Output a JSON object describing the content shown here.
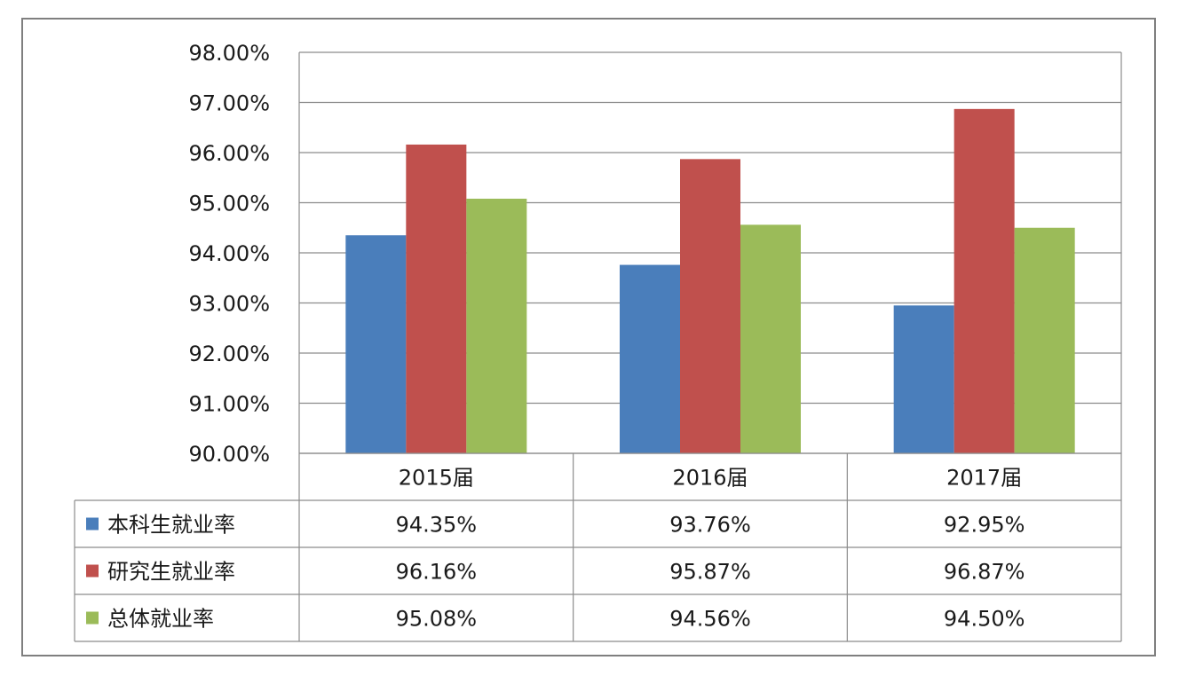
{
  "chart_data": {
    "type": "bar",
    "categories": [
      "2015届",
      "2016届",
      "2017届"
    ],
    "series": [
      {
        "name": "本科生就业率",
        "values": [
          94.35,
          93.76,
          92.95
        ],
        "labels": [
          "94.35%",
          "93.76%",
          "92.95%"
        ],
        "color": "#4a7ebb"
      },
      {
        "name": "研究生就业率",
        "values": [
          96.16,
          95.87,
          96.87
        ],
        "labels": [
          "96.16%",
          "95.87%",
          "96.87%"
        ],
        "color": "#c0504d"
      },
      {
        "name": "总体就业率",
        "values": [
          95.08,
          94.56,
          94.5
        ],
        "labels": [
          "95.08%",
          "94.56%",
          "94.50%"
        ],
        "color": "#9bbb59"
      }
    ],
    "ylim": [
      90,
      98
    ],
    "yticks": [
      "90.00%",
      "91.00%",
      "92.00%",
      "93.00%",
      "94.00%",
      "95.00%",
      "96.00%",
      "97.00%",
      "98.00%"
    ],
    "grid": true,
    "legend": "data-table"
  }
}
